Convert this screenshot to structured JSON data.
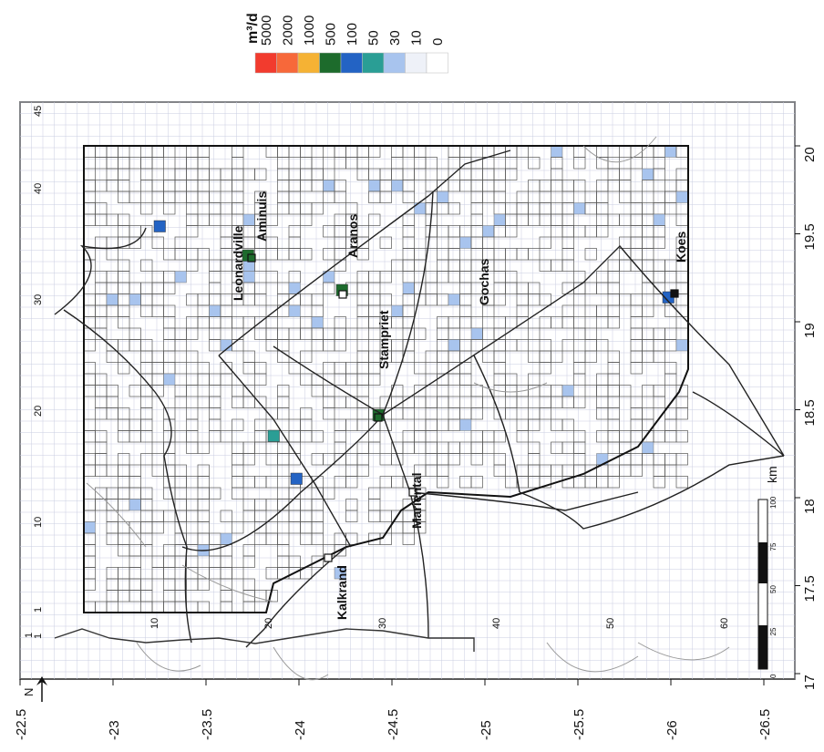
{
  "legend": {
    "unit": "m³/d",
    "entries": [
      {
        "label": "5000",
        "color": "#f23b2e"
      },
      {
        "label": "2000",
        "color": "#f7683a"
      },
      {
        "label": "1000",
        "color": "#f5b234"
      },
      {
        "label": "500",
        "color": "#1d6b2c"
      },
      {
        "label": "100",
        "color": "#2363c4"
      },
      {
        "label": "50",
        "color": "#2a9e95"
      },
      {
        "label": "30",
        "color": "#a8c4ee"
      },
      {
        "label": "10",
        "color": "#eef1f8"
      },
      {
        "label": "0",
        "color": "#ffffff"
      }
    ]
  },
  "axes": {
    "longitude_ticks": [
      "20",
      "19.5",
      "19",
      "18.5",
      "18",
      "17.5",
      "17"
    ],
    "latitude_ticks": [
      "-22.5",
      "-23",
      "-23.5",
      "-24",
      "-24.5",
      "-25",
      "-25.5",
      "-26",
      "-26.5"
    ],
    "grid_row_ticks": [
      "40",
      "30",
      "20",
      "10",
      "1"
    ],
    "grid_col_ticks": [
      "10",
      "20",
      "30",
      "40",
      "50",
      "60"
    ],
    "grid_extra_labels": [
      "45",
      "1",
      "1"
    ]
  },
  "towns": [
    {
      "name": "Aminuis"
    },
    {
      "name": "Leonardville"
    },
    {
      "name": "Aranos"
    },
    {
      "name": "Gochas"
    },
    {
      "name": "Koes"
    },
    {
      "name": "Stampriet"
    },
    {
      "name": "Mariental"
    },
    {
      "name": "Kalkrand"
    }
  ],
  "scale_bar": {
    "unit": "km",
    "labels": [
      "100",
      "75",
      "50",
      "25",
      "0"
    ]
  },
  "north_arrow": {
    "label": "N"
  }
}
